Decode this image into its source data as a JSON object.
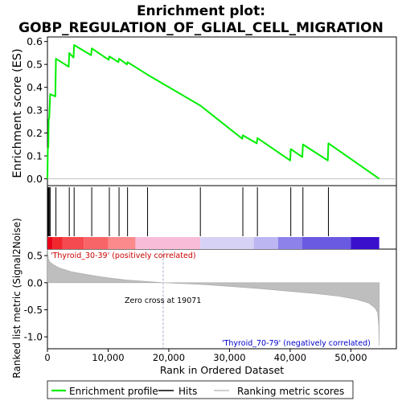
{
  "chart_data": {
    "type": "line",
    "title_line1": "Enrichment plot:",
    "title_line2": "GOBP_REGULATION_OF_GLIAL_CELL_MIGRATION",
    "es_ylabel": "Enrichment score (ES)",
    "rank_ylabel": "Ranked list metric (Signal2Noise)",
    "xlabel": "Rank in Ordered Dataset",
    "x_max": 54675,
    "xlim": [
      0,
      57500
    ],
    "x_ticks": [
      0,
      10000,
      20000,
      30000,
      40000,
      50000
    ],
    "x_tick_labels": [
      "0",
      "10,000",
      "20,000",
      "30,000",
      "40,000",
      "50,000"
    ],
    "es_ylim": [
      -0.03,
      0.62
    ],
    "es_ticks": [
      0.0,
      0.1,
      0.2,
      0.3,
      0.4,
      0.5,
      0.6
    ],
    "es_tick_labels": [
      "0.0",
      "0.1",
      "0.2",
      "0.3",
      "0.4",
      "0.5",
      "0.6"
    ],
    "enrichment_profile": [
      [
        0,
        0
      ],
      [
        60,
        0.13
      ],
      [
        150,
        0.14
      ],
      [
        200,
        0.26
      ],
      [
        300,
        0.265
      ],
      [
        450,
        0.37
      ],
      [
        1300,
        0.36
      ],
      [
        1400,
        0.525
      ],
      [
        3500,
        0.49
      ],
      [
        3600,
        0.55
      ],
      [
        4300,
        0.53
      ],
      [
        4400,
        0.585
      ],
      [
        7200,
        0.54
      ],
      [
        7300,
        0.57
      ],
      [
        10100,
        0.52
      ],
      [
        10200,
        0.535
      ],
      [
        11700,
        0.51
      ],
      [
        11800,
        0.525
      ],
      [
        13100,
        0.5
      ],
      [
        13200,
        0.51
      ],
      [
        16500,
        0.455
      ],
      [
        25200,
        0.32
      ],
      [
        32100,
        0.175
      ],
      [
        32200,
        0.19
      ],
      [
        34500,
        0.155
      ],
      [
        34600,
        0.178
      ],
      [
        40000,
        0.08
      ],
      [
        40100,
        0.13
      ],
      [
        42000,
        0.095
      ],
      [
        42100,
        0.15
      ],
      [
        46200,
        0.08
      ],
      [
        46300,
        0.155
      ],
      [
        54675,
        0.0
      ]
    ],
    "hits": [
      60,
      150,
      200,
      300,
      450,
      1400,
      3600,
      4400,
      7300,
      10200,
      11800,
      13200,
      16500,
      25200,
      32200,
      34600,
      40100,
      42100,
      46300
    ],
    "rank_ylim": [
      -1.22,
      0.62
    ],
    "rank_ticks": [
      0.5,
      0.0,
      -0.5,
      -1.0
    ],
    "rank_tick_labels": [
      "0.5",
      "0.0",
      "-0.5",
      "-1.0"
    ],
    "ranking_metric_curve": [
      [
        0,
        0.62
      ],
      [
        150,
        0.44
      ],
      [
        400,
        0.38
      ],
      [
        1000,
        0.33
      ],
      [
        2000,
        0.27
      ],
      [
        4000,
        0.2
      ],
      [
        7000,
        0.14
      ],
      [
        10000,
        0.09
      ],
      [
        13000,
        0.05
      ],
      [
        16000,
        0.025
      ],
      [
        19071,
        0.0
      ],
      [
        25000,
        -0.03
      ],
      [
        30000,
        -0.07
      ],
      [
        35000,
        -0.11
      ],
      [
        40000,
        -0.16
      ],
      [
        44000,
        -0.2
      ],
      [
        48000,
        -0.25
      ],
      [
        51000,
        -0.31
      ],
      [
        53000,
        -0.38
      ],
      [
        54000,
        -0.47
      ],
      [
        54400,
        -0.55
      ],
      [
        54600,
        -0.8
      ],
      [
        54675,
        -1.17
      ]
    ],
    "zero_cross": 19071,
    "zero_cross_label": "Zero cross at 19071",
    "pos_label": "'Thyroid_30-39' (positively correlated)",
    "neg_label": "'Thyroid_70-79' (negatively correlated)",
    "heat_segments": [
      {
        "start": 0,
        "end": 800,
        "color": "#e8001a"
      },
      {
        "start": 800,
        "end": 2500,
        "color": "#f0282e"
      },
      {
        "start": 2500,
        "end": 6000,
        "color": "#f54a4f"
      },
      {
        "start": 6000,
        "end": 10000,
        "color": "#f86568"
      },
      {
        "start": 10000,
        "end": 14500,
        "color": "#fb8a8c"
      },
      {
        "start": 14500,
        "end": 25200,
        "color": "#f8bcd8"
      },
      {
        "start": 25200,
        "end": 34000,
        "color": "#d6d2f6"
      },
      {
        "start": 34000,
        "end": 38000,
        "color": "#bcb6f2"
      },
      {
        "start": 38000,
        "end": 42000,
        "color": "#8c82ea"
      },
      {
        "start": 42000,
        "end": 50000,
        "color": "#6a5ae2"
      },
      {
        "start": 50000,
        "end": 54675,
        "color": "#3a10cc"
      }
    ],
    "colors": {
      "profile": "#00ee00",
      "hit": "#000000",
      "metric_fill": "#bebebe",
      "pos_text": "#cc0000",
      "neg_text": "#0000cc",
      "zero_line": "#a0a0c8"
    },
    "legend": {
      "profile": "Enrichment profile",
      "hits": "Hits",
      "metric": "Ranking metric scores"
    }
  }
}
